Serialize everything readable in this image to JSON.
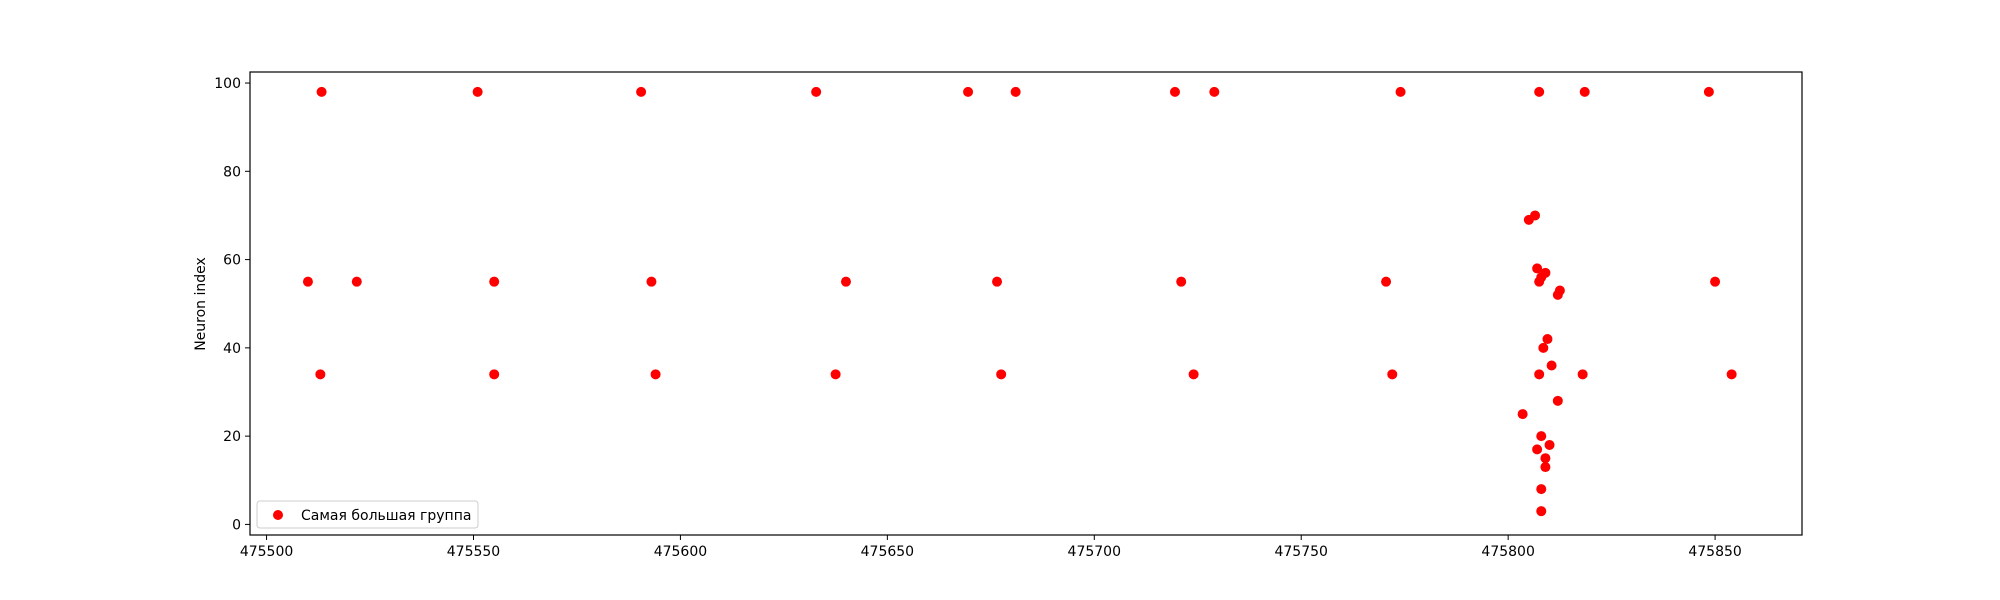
{
  "chart_data": {
    "type": "scatter",
    "title": "",
    "xlabel": "",
    "ylabel": "Neuron index",
    "xlim": [
      475496,
      475871
    ],
    "ylim": [
      -2.4,
      102.5
    ],
    "xticks": [
      475500,
      475550,
      475600,
      475650,
      475700,
      475750,
      475800,
      475850
    ],
    "xtick_labels": [
      "475500",
      "475550",
      "475600",
      "475650",
      "475700",
      "475750",
      "475800",
      "475850"
    ],
    "yticks": [
      0,
      20,
      40,
      60,
      80,
      100
    ],
    "ytick_labels": [
      "0",
      "20",
      "40",
      "60",
      "80",
      "100"
    ],
    "grid": false,
    "legend_position": "lower-left",
    "series": [
      {
        "name": "Самая большая группа",
        "color": "#ff0000",
        "marker": "circle",
        "points": [
          [
            475513.3,
            98
          ],
          [
            475551.0,
            98
          ],
          [
            475590.5,
            98
          ],
          [
            475632.8,
            98
          ],
          [
            475669.5,
            98
          ],
          [
            475681.0,
            98
          ],
          [
            475719.5,
            98
          ],
          [
            475729.0,
            98
          ],
          [
            475774.0,
            98
          ],
          [
            475807.5,
            98
          ],
          [
            475818.5,
            98
          ],
          [
            475848.5,
            98
          ],
          [
            475510.0,
            55
          ],
          [
            475521.8,
            55
          ],
          [
            475555.0,
            55
          ],
          [
            475593.0,
            55
          ],
          [
            475640.0,
            55
          ],
          [
            475676.5,
            55
          ],
          [
            475721.0,
            55
          ],
          [
            475770.5,
            55
          ],
          [
            475850.0,
            55
          ],
          [
            475513.0,
            34
          ],
          [
            475555.0,
            34
          ],
          [
            475594.0,
            34
          ],
          [
            475637.5,
            34
          ],
          [
            475677.5,
            34
          ],
          [
            475724.0,
            34
          ],
          [
            475772.0,
            34
          ],
          [
            475807.5,
            34
          ],
          [
            475818.0,
            34
          ],
          [
            475854.0,
            34
          ],
          [
            475805.0,
            69
          ],
          [
            475806.5,
            70
          ],
          [
            475807.0,
            58
          ],
          [
            475809.0,
            57
          ],
          [
            475808.0,
            56
          ],
          [
            475807.5,
            55
          ],
          [
            475812.0,
            52
          ],
          [
            475812.5,
            53
          ],
          [
            475809.5,
            42
          ],
          [
            475808.5,
            40
          ],
          [
            475810.5,
            36
          ],
          [
            475812.0,
            28
          ],
          [
            475803.5,
            25
          ],
          [
            475808.0,
            20
          ],
          [
            475810.0,
            18
          ],
          [
            475807.0,
            17
          ],
          [
            475809.0,
            15
          ],
          [
            475809.0,
            13
          ],
          [
            475808.0,
            8
          ],
          [
            475808.0,
            3
          ]
        ]
      }
    ]
  }
}
